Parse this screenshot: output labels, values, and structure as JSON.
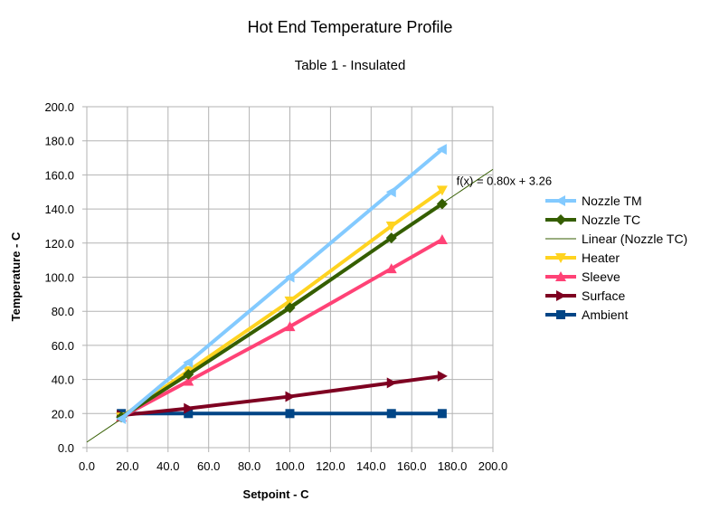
{
  "chart_data": {
    "type": "line",
    "title": "Hot End Temperature Profile",
    "subtitle": "Table 1 - Insulated",
    "xlabel": "Setpoint - C",
    "ylabel": "Temperature - C",
    "xlim": [
      0,
      200
    ],
    "ylim": [
      0,
      200
    ],
    "xticks": [
      "0.0",
      "20.0",
      "40.0",
      "60.0",
      "80.0",
      "100.0",
      "120.0",
      "140.0",
      "160.0",
      "180.0",
      "200.0"
    ],
    "yticks": [
      "0.0",
      "20.0",
      "40.0",
      "60.0",
      "80.0",
      "100.0",
      "120.0",
      "140.0",
      "160.0",
      "180.0",
      "200.0"
    ],
    "grid": true,
    "legend_position": "right",
    "x": [
      17,
      50,
      100,
      150,
      175
    ],
    "series": [
      {
        "name": "Nozzle TM",
        "color": "#83caff",
        "marker": "triangle-left",
        "values": [
          17,
          50,
          100,
          150,
          175
        ]
      },
      {
        "name": "Nozzle TC",
        "color": "#355e00",
        "marker": "diamond",
        "values": [
          18,
          43,
          82,
          123,
          143
        ]
      },
      {
        "name": "Heater",
        "color": "#ffd320",
        "marker": "triangle-down",
        "values": [
          18,
          45,
          86,
          130,
          151
        ]
      },
      {
        "name": "Sleeve",
        "color": "#ff4276",
        "marker": "triangle-up",
        "values": [
          18,
          39,
          71,
          105,
          122
        ]
      },
      {
        "name": "Surface",
        "color": "#7e0021",
        "marker": "triangle-right",
        "values": [
          19,
          23,
          30,
          38,
          42
        ]
      },
      {
        "name": "Ambient",
        "color": "#004586",
        "marker": "square",
        "values": [
          20,
          20,
          20,
          20,
          20
        ]
      }
    ],
    "trendline": {
      "name": "Linear (Nozzle TC)",
      "of_series": "Nozzle TC",
      "slope": 0.8,
      "intercept": 3.26,
      "equation": "f(x) = 0.80x + 3.26",
      "color": "#355e00"
    }
  }
}
